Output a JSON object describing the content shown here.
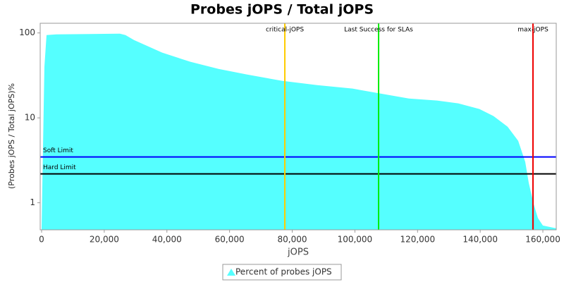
{
  "chart_data": {
    "type": "area",
    "title": "Probes jOPS / Total jOPS",
    "x_label": "jOPS",
    "y_label": "(Probes jOPS / Total jOPS)%",
    "log_y": true,
    "x": [
      0,
      900,
      1575,
      4725,
      24978,
      26778,
      29478,
      38480,
      47481,
      56483,
      65484,
      76735,
      87987,
      99239,
      108240,
      117242,
      126244,
      132995,
      139746,
      144246,
      148747,
      152122,
      154373,
      155498,
      157073,
      158423,
      160000,
      164270
    ],
    "series": [
      {
        "name": "Percent of probes jOPS",
        "color": "#55ffff",
        "values": [
          0.5,
          40,
          94.4,
          96.2,
          98.1,
          94.4,
          82.6,
          58.6,
          45.7,
          37.7,
          32.4,
          27.3,
          24.3,
          22.1,
          19.3,
          16.9,
          16,
          14.8,
          12.7,
          10.5,
          7.87,
          5.37,
          3.03,
          1.71,
          0.96,
          0.66,
          0.54,
          0.5
        ]
      }
    ],
    "xlim": [
      -450,
      164270
    ],
    "ylim": [
      0.48,
      130
    ],
    "xticks": [
      0,
      {
        "value": 20000,
        "label": "20,000"
      },
      {
        "value": 40000,
        "label": "40,000"
      },
      {
        "value": 60000,
        "label": "60,000"
      },
      {
        "value": 80000,
        "label": "80,000"
      },
      {
        "value": 100000,
        "label": "100,000"
      },
      {
        "value": 120000,
        "label": "120,000"
      },
      {
        "value": 140000,
        "label": "140,000"
      },
      {
        "value": 160000,
        "label": "160,000"
      }
    ],
    "yticks": [
      1,
      10,
      100
    ],
    "vlines": [
      {
        "label": "critical-jOPS",
        "value": 77636,
        "color": "#ffcc00"
      },
      {
        "label": "Last Success for SLAs",
        "value": 107565,
        "color": "#00ee00"
      },
      {
        "label": "max-jOPS",
        "value": 156847,
        "color": "#ee0000"
      }
    ],
    "hlines": [
      {
        "label": "Soft Limit",
        "value": 3.46,
        "color": "#0000ff"
      },
      {
        "label": "Hard Limit",
        "value": 2.19,
        "color": "#000000"
      }
    ]
  }
}
